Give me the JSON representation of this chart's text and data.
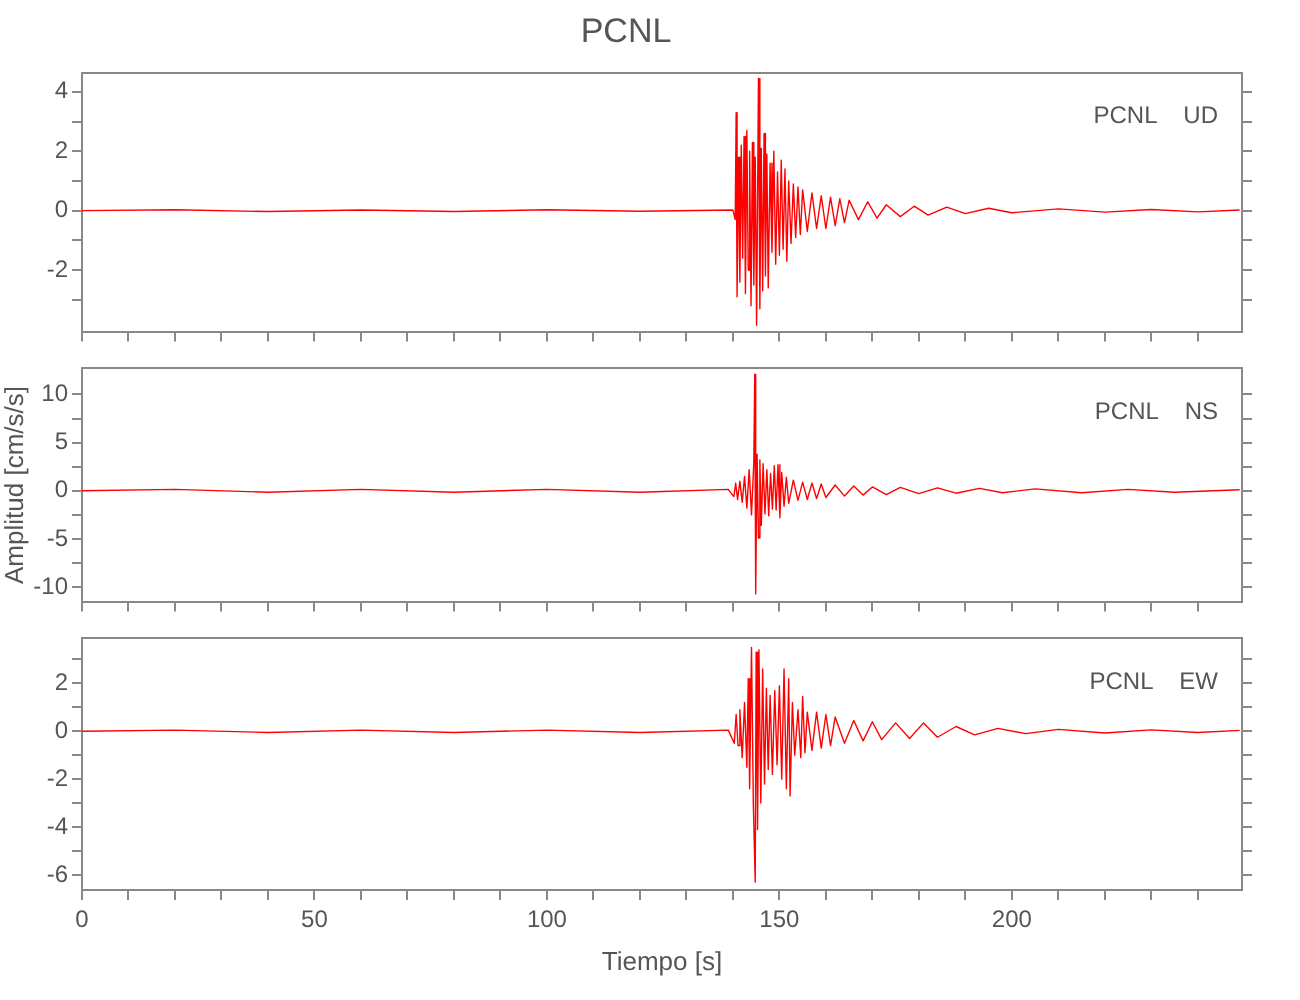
{
  "chart_data": [
    {
      "type": "line",
      "title": "PCNL",
      "annotations": [
        "PCNL    UD"
      ],
      "tick_labels": "y",
      "color": "#ff0000",
      "xlim": [
        0,
        249.5
      ],
      "xticks": [
        0,
        {
          "value": 10,
          "label": null
        },
        {
          "value": 20,
          "label": null
        },
        {
          "value": 30,
          "label": null
        },
        {
          "value": 40,
          "label": null
        },
        50,
        {
          "value": 60,
          "label": null
        },
        {
          "value": 70,
          "label": null
        },
        {
          "value": 80,
          "label": null
        },
        {
          "value": 90,
          "label": null
        },
        100,
        {
          "value": 110,
          "label": null
        },
        {
          "value": 120,
          "label": null
        },
        {
          "value": 130,
          "label": null
        },
        {
          "value": 140,
          "label": null
        },
        150,
        {
          "value": 160,
          "label": null
        },
        {
          "value": 170,
          "label": null
        },
        {
          "value": 180,
          "label": null
        },
        {
          "value": 190,
          "label": null
        },
        200,
        {
          "value": 210,
          "label": null
        },
        {
          "value": 220,
          "label": null
        },
        {
          "value": 230,
          "label": null
        },
        {
          "value": 240,
          "label": null
        }
      ],
      "ylim": [
        -4.07,
        4.64
      ],
      "yticks": [
        {
          "value": -3,
          "label": null
        },
        -2,
        {
          "value": -1,
          "label": null
        },
        0,
        {
          "value": 1,
          "label": null
        },
        2,
        {
          "value": 3,
          "label": null
        },
        4
      ],
      "x": [
        0,
        20,
        40,
        60,
        80,
        100,
        120,
        140,
        140.5,
        140.7,
        140.9,
        141.2,
        141.5,
        141.8,
        142.1,
        142.4,
        142.7,
        143,
        143.3,
        143.6,
        143.9,
        144.2,
        144.5,
        144.8,
        145.1,
        145.5,
        145.8,
        146.1,
        146.4,
        146.7,
        147,
        147.3,
        147.6,
        148,
        148.4,
        148.8,
        149.2,
        149.6,
        150,
        150.4,
        150.8,
        151.2,
        151.6,
        152,
        152.5,
        153,
        153.5,
        154,
        154.5,
        155,
        156,
        157,
        158,
        159,
        160,
        161,
        162,
        163,
        164,
        165,
        167,
        169,
        171,
        173,
        176,
        179,
        182,
        186,
        190,
        195,
        200,
        210,
        220,
        230,
        240,
        249
      ],
      "values": [
        0,
        0.03,
        -0.03,
        0.02,
        -0.03,
        0.03,
        -0.02,
        0.02,
        -0.3,
        3.3,
        -2.9,
        1.8,
        -2.4,
        2.2,
        -1.6,
        2.5,
        -2.8,
        2.7,
        -2,
        2,
        -3.2,
        2.3,
        -2.5,
        1.8,
        -3.86,
        4.45,
        -3.3,
        2.1,
        -2.7,
        2.6,
        -2.2,
        1.9,
        -2.6,
        1.6,
        -1.4,
        2,
        -1.8,
        1.3,
        -1.5,
        1.7,
        -1.3,
        1.4,
        -1.7,
        1,
        -1.1,
        0.9,
        -0.9,
        0.8,
        -0.8,
        0.7,
        -0.7,
        0.6,
        -0.6,
        0.5,
        -0.6,
        0.45,
        -0.5,
        0.4,
        -0.4,
        0.35,
        -0.3,
        0.3,
        -0.25,
        0.2,
        -0.2,
        0.15,
        -0.15,
        0.12,
        -0.1,
        0.08,
        -0.07,
        0.06,
        -0.05,
        0.04,
        -0.04,
        0.02
      ]
    },
    {
      "type": "line",
      "ylabel": "Amplitud [cm/s/s]",
      "annotations": [
        "PCNL    NS"
      ],
      "tick_labels": "y",
      "color": "#ff0000",
      "xlim": [
        0,
        249.5
      ],
      "xticks": [
        0,
        {
          "value": 10,
          "label": null
        },
        {
          "value": 20,
          "label": null
        },
        {
          "value": 30,
          "label": null
        },
        {
          "value": 40,
          "label": null
        },
        50,
        {
          "value": 60,
          "label": null
        },
        {
          "value": 70,
          "label": null
        },
        {
          "value": 80,
          "label": null
        },
        {
          "value": 90,
          "label": null
        },
        100,
        {
          "value": 110,
          "label": null
        },
        {
          "value": 120,
          "label": null
        },
        {
          "value": 130,
          "label": null
        },
        {
          "value": 140,
          "label": null
        },
        150,
        {
          "value": 160,
          "label": null
        },
        {
          "value": 170,
          "label": null
        },
        {
          "value": 180,
          "label": null
        },
        {
          "value": 190,
          "label": null
        },
        200,
        {
          "value": 210,
          "label": null
        },
        {
          "value": 220,
          "label": null
        },
        {
          "value": 230,
          "label": null
        },
        {
          "value": 240,
          "label": null
        }
      ],
      "ylim": [
        -11.5,
        12.7
      ],
      "yticks": [
        -10,
        {
          "value": -7.5,
          "label": null
        },
        -5,
        {
          "value": -2.5,
          "label": null
        },
        0,
        {
          "value": 2.5,
          "label": null
        },
        5,
        {
          "value": 7.5,
          "label": null
        },
        10
      ],
      "x": [
        0,
        20,
        40,
        60,
        80,
        100,
        120,
        139,
        140.2,
        140.6,
        141,
        141.5,
        142,
        142.5,
        143,
        143.5,
        144,
        144.5,
        144.7,
        144.9,
        145.2,
        145.5,
        145.8,
        146.1,
        146.5,
        146.9,
        147.3,
        147.7,
        148.1,
        148.5,
        148.9,
        149.3,
        149.7,
        150.1,
        150.5,
        151,
        151.5,
        152,
        153,
        154,
        155,
        156,
        157,
        158,
        159,
        160,
        162,
        164,
        166,
        168,
        170,
        173,
        176,
        180,
        184,
        188,
        193,
        198,
        205,
        215,
        225,
        235,
        249
      ],
      "values": [
        0,
        0.15,
        -0.15,
        0.15,
        -0.15,
        0.15,
        -0.15,
        0.15,
        -0.6,
        0.8,
        -0.9,
        1,
        -1.2,
        1.5,
        -1.8,
        2.2,
        -2.5,
        3,
        12.1,
        -10.7,
        3.8,
        -4.9,
        3.2,
        -3.6,
        2.8,
        -2.4,
        2.2,
        -2.6,
        1.8,
        -1.9,
        2.6,
        -2,
        2.7,
        -2.8,
        1.9,
        -1.6,
        1.4,
        -1.3,
        1.1,
        -1,
        0.9,
        -0.9,
        0.8,
        -0.8,
        0.7,
        -0.7,
        0.6,
        -0.55,
        0.5,
        -0.45,
        0.4,
        -0.4,
        0.35,
        -0.3,
        0.3,
        -0.25,
        0.25,
        -0.2,
        0.2,
        -0.2,
        0.15,
        -0.15,
        0.1
      ]
    },
    {
      "type": "line",
      "xlabel": "Tiempo [s]",
      "annotations": [
        "PCNL    EW"
      ],
      "color": "#ff0000",
      "xlim": [
        0,
        249.5
      ],
      "xticks": [
        0,
        {
          "value": 10,
          "label": null
        },
        {
          "value": 20,
          "label": null
        },
        {
          "value": 30,
          "label": null
        },
        {
          "value": 40,
          "label": null
        },
        50,
        {
          "value": 60,
          "label": null
        },
        {
          "value": 70,
          "label": null
        },
        {
          "value": 80,
          "label": null
        },
        {
          "value": 90,
          "label": null
        },
        100,
        {
          "value": 110,
          "label": null
        },
        {
          "value": 120,
          "label": null
        },
        {
          "value": 130,
          "label": null
        },
        {
          "value": 140,
          "label": null
        },
        150,
        {
          "value": 160,
          "label": null
        },
        {
          "value": 170,
          "label": null
        },
        {
          "value": 180,
          "label": null
        },
        {
          "value": 190,
          "label": null
        },
        200,
        {
          "value": 210,
          "label": null
        },
        {
          "value": 220,
          "label": null
        },
        {
          "value": 230,
          "label": null
        },
        {
          "value": 240,
          "label": null
        }
      ],
      "ylim": [
        -6.63,
        3.88
      ],
      "yticks": [
        -6,
        {
          "value": -5,
          "label": null
        },
        -4,
        {
          "value": -3,
          "label": null
        },
        -2,
        {
          "value": -1,
          "label": null
        },
        0,
        {
          "value": 1,
          "label": null
        },
        2,
        {
          "value": 3,
          "label": null
        }
      ],
      "x": [
        0,
        20,
        40,
        60,
        80,
        100,
        120,
        139,
        140.3,
        140.7,
        141.1,
        141.5,
        142,
        142.5,
        143,
        143.3,
        143.6,
        144,
        144.4,
        144.8,
        145,
        145.3,
        145.6,
        146,
        146.4,
        146.8,
        147.2,
        147.6,
        148,
        148.5,
        149,
        149.5,
        150,
        150.5,
        151,
        151.5,
        152,
        152.3,
        152.8,
        153.3,
        154,
        154.6,
        155,
        155.5,
        156,
        157,
        158,
        159,
        160,
        161,
        162,
        164,
        166,
        168,
        170,
        172,
        175,
        178,
        181,
        184,
        188,
        192,
        197,
        203,
        210,
        220,
        230,
        240,
        249
      ],
      "values": [
        0,
        0.05,
        -0.05,
        0.05,
        -0.05,
        0.05,
        -0.05,
        0.05,
        -0.5,
        0.7,
        -0.6,
        0.9,
        -1.1,
        1.2,
        -1.5,
        2.2,
        -2.4,
        3.5,
        -3.1,
        -6.3,
        3.3,
        -4.1,
        3.4,
        -3,
        2.6,
        -2.2,
        1.8,
        -1.6,
        1.5,
        -1.8,
        1.7,
        -1.4,
        1.9,
        -2,
        2.6,
        -2.4,
        2.2,
        -2.7,
        1.2,
        -1,
        0.9,
        -1.1,
        1.45,
        -0.9,
        0.8,
        -0.8,
        0.8,
        -0.7,
        0.7,
        -0.6,
        0.6,
        -0.5,
        0.45,
        -0.4,
        0.4,
        -0.35,
        0.35,
        -0.3,
        0.35,
        -0.25,
        0.2,
        -0.15,
        0.12,
        -0.1,
        0.08,
        -0.07,
        0.06,
        -0.05,
        0.04
      ]
    }
  ]
}
